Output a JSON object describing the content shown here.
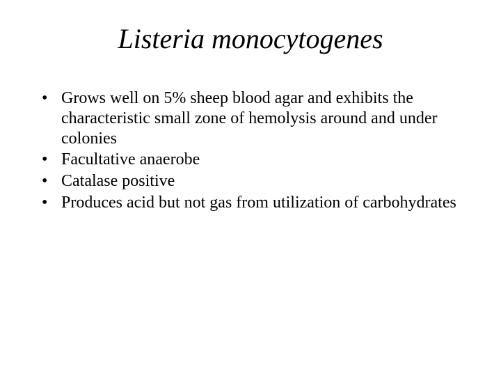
{
  "slide": {
    "title": "Listeria monocytogenes",
    "title_fontsize": 40,
    "title_style": "italic",
    "body_fontsize": 24,
    "background_color": "#ffffff",
    "text_color": "#000000",
    "bullets": [
      "Grows well on 5% sheep blood agar and exhibits the characteristic small zone of hemolysis around and under colonies",
      "Facultative anaerobe",
      "Catalase positive",
      "Produces acid but not gas from utilization of carbohydrates"
    ]
  }
}
